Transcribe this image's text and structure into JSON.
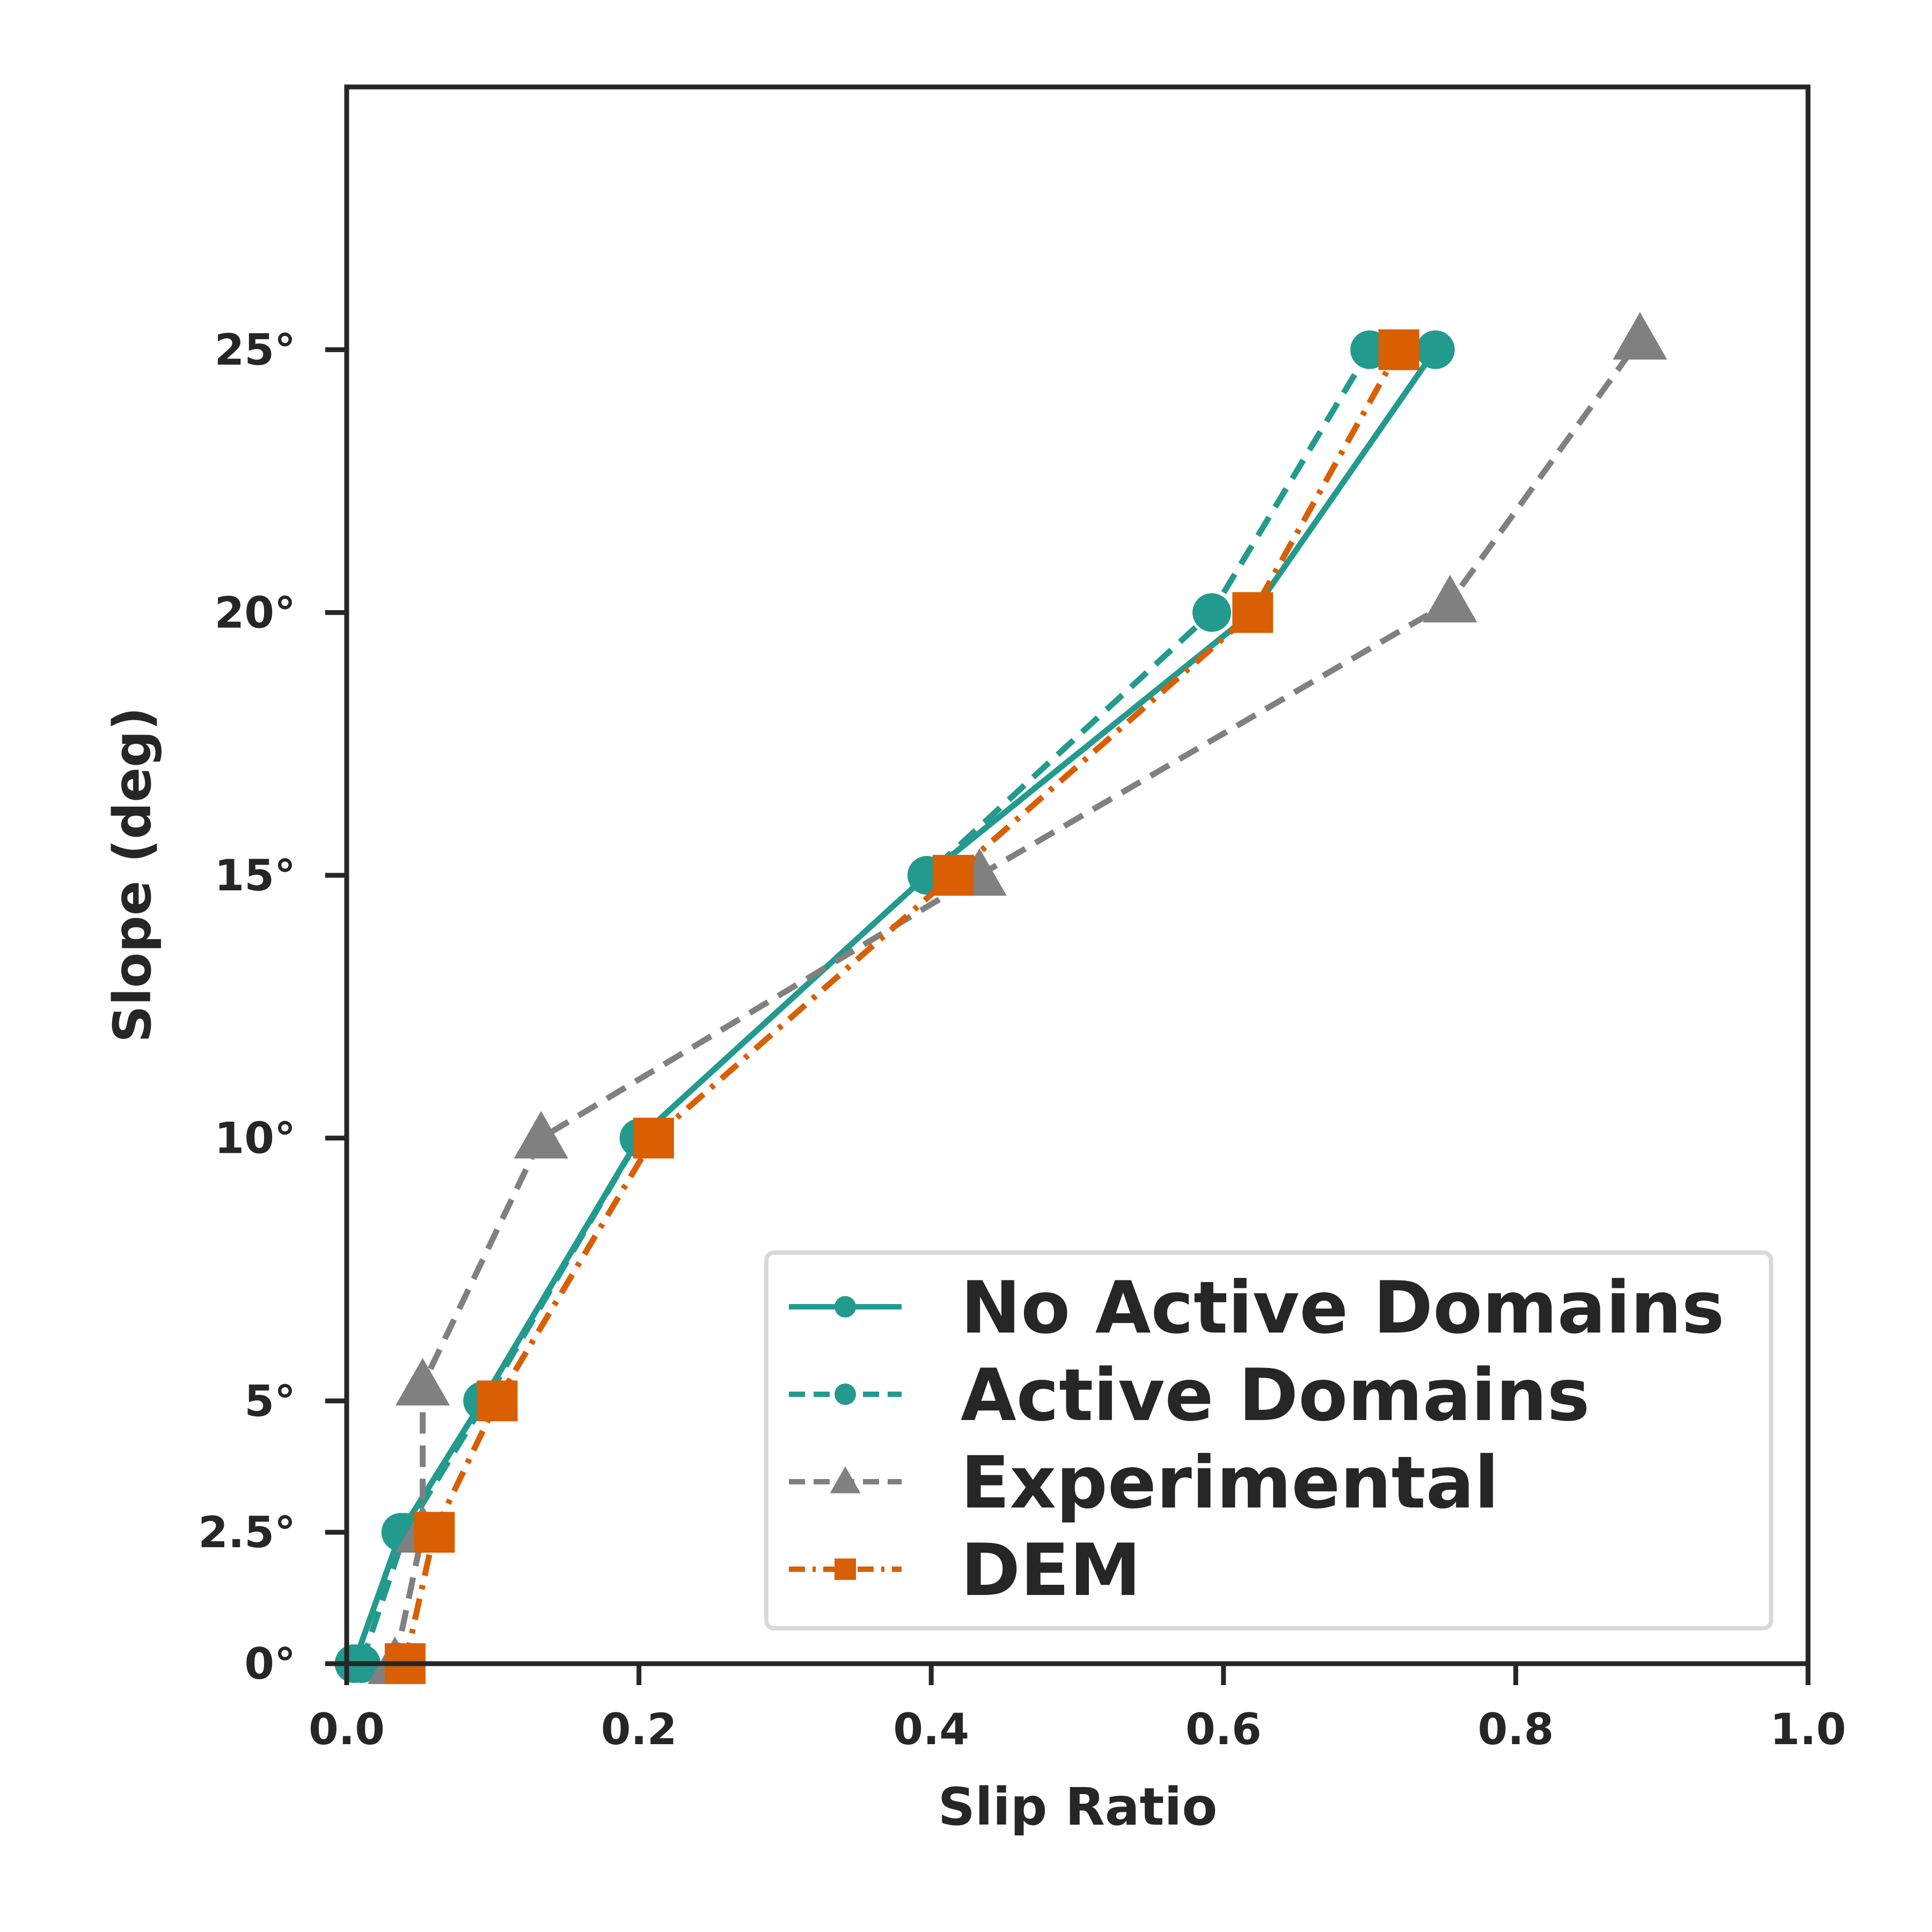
{
  "chart_data": {
    "type": "line",
    "title": "",
    "xlabel": "Slip Ratio",
    "ylabel": "Slope (deg)",
    "xlim": [
      0.0,
      1.0
    ],
    "ylim": [
      0,
      30
    ],
    "x_ticks": [
      {
        "value": 0.0,
        "label": "0.0"
      },
      {
        "value": 0.2,
        "label": "0.2"
      },
      {
        "value": 0.4,
        "label": "0.4"
      },
      {
        "value": 0.6,
        "label": "0.6"
      },
      {
        "value": 0.8,
        "label": "0.8"
      },
      {
        "value": 1.0,
        "label": "1.0"
      }
    ],
    "y_ticks": [
      {
        "value": 0,
        "label": "0°"
      },
      {
        "value": 2.5,
        "label": "2.5°"
      },
      {
        "value": 5,
        "label": "5°"
      },
      {
        "value": 10,
        "label": "10°"
      },
      {
        "value": 15,
        "label": "15°"
      },
      {
        "value": 20,
        "label": "20°"
      },
      {
        "value": 25,
        "label": "25°"
      }
    ],
    "grid": false,
    "legend_position": "lower-right",
    "series": [
      {
        "name": "No Active Domains",
        "color": "#239a8e",
        "linestyle": "solid",
        "marker": "circle",
        "x": [
          0.005,
          0.037,
          0.093,
          0.2,
          0.397,
          0.62,
          0.745
        ],
        "y": [
          0,
          2.5,
          5,
          10,
          15,
          20,
          25
        ]
      },
      {
        "name": "Active Domains",
        "color": "#239a8e",
        "linestyle": "dashed",
        "marker": "circle",
        "x": [
          0.01,
          0.04,
          0.095,
          0.2,
          0.397,
          0.592,
          0.7
        ],
        "y": [
          0,
          2.5,
          5,
          10,
          15,
          20,
          25
        ]
      },
      {
        "name": "Experimental",
        "color": "#808080",
        "linestyle": "dashed",
        "marker": "triangle",
        "x": [
          0.033,
          0.052,
          0.052,
          0.133,
          0.433,
          0.755,
          0.885
        ],
        "y": [
          0,
          2.5,
          5.3,
          10,
          15,
          20.2,
          25.2
        ]
      },
      {
        "name": "DEM",
        "color": "#d95f02",
        "linestyle": "dashdot",
        "marker": "square",
        "x": [
          0.04,
          0.06,
          0.103,
          0.21,
          0.415,
          0.62,
          0.72
        ],
        "y": [
          0,
          2.5,
          5,
          10,
          15,
          20,
          25
        ]
      }
    ]
  }
}
